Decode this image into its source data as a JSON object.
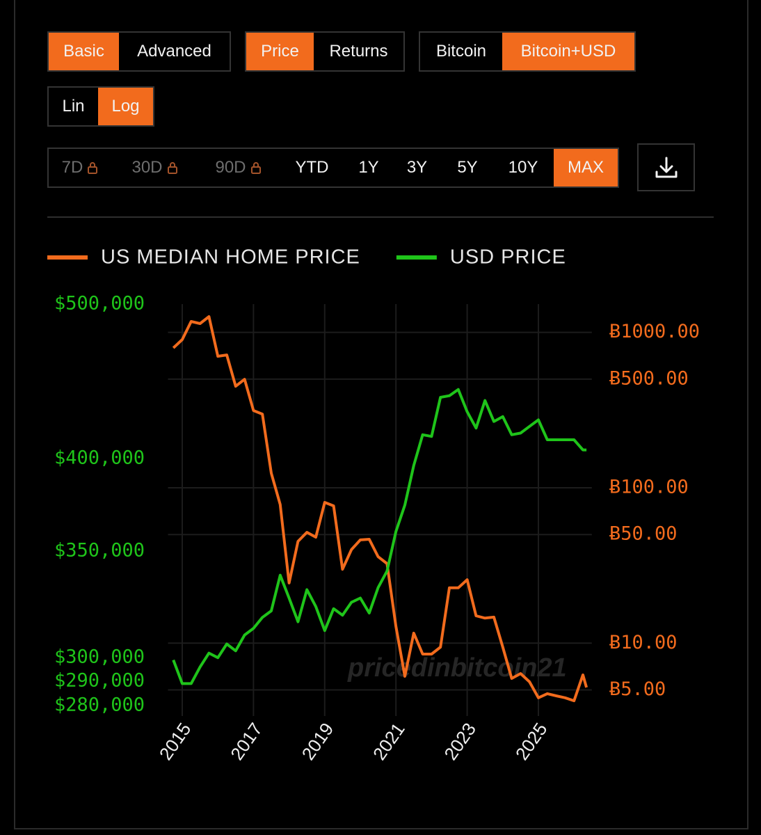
{
  "controls": {
    "mode": [
      "Basic",
      "Advanced"
    ],
    "view": [
      "Price",
      "Returns"
    ],
    "denomination": [
      "Bitcoin",
      "Bitcoin+USD"
    ],
    "scale": [
      "Lin",
      "Log"
    ],
    "ranges": [
      "7D",
      "30D",
      "90D",
      "YTD",
      "1Y",
      "3Y",
      "5Y",
      "10Y",
      "MAX"
    ]
  },
  "chart_data": {
    "type": "line",
    "watermark": "pricedinbitcoin21",
    "x": [
      2014.75,
      2015,
      2015.25,
      2015.5,
      2015.75,
      2016,
      2016.25,
      2016.5,
      2016.75,
      2017,
      2017.25,
      2017.5,
      2017.75,
      2018,
      2018.25,
      2018.5,
      2018.75,
      2019,
      2019.25,
      2019.5,
      2019.75,
      2020,
      2020.25,
      2020.5,
      2020.75,
      2021,
      2021.25,
      2021.5,
      2021.75,
      2022,
      2022.25,
      2022.5,
      2022.75,
      2023,
      2023.25,
      2023.5,
      2023.75,
      2024,
      2024.25,
      2024.5,
      2024.75,
      2025,
      2025.25,
      2025.5,
      2025.75,
      2026,
      2026.25,
      2026.35
    ],
    "series": [
      {
        "name": "US MEDIAN HOME PRICE",
        "color": "#f26b1d",
        "axis": "y2",
        "values": [
          794,
          899,
          1175,
          1139,
          1263,
          702,
          716,
          450,
          499,
          314,
          298,
          124,
          78,
          24.4,
          45.2,
          51.7,
          48.1,
          80.5,
          76.5,
          29.9,
          40.0,
          46.2,
          46.6,
          36.0,
          32.5,
          12.8,
          6.12,
          11.6,
          8.51,
          8.51,
          9.43,
          22.7,
          22.7,
          25.6,
          15.0,
          14.5,
          14.7,
          9.43,
          5.93,
          6.37,
          5.64,
          4.45,
          4.73,
          4.58,
          4.45,
          4.26,
          6.25,
          5.19
        ]
      },
      {
        "name": "USD PRICE",
        "color": "#1fc41a",
        "axis": "y",
        "values": [
          299000,
          289000,
          289000,
          296000,
          302000,
          300000,
          306000,
          303000,
          310000,
          313000,
          318000,
          321000,
          338000,
          327000,
          316000,
          331000,
          323000,
          312000,
          322000,
          319000,
          325000,
          327000,
          320000,
          332000,
          340000,
          360000,
          374000,
          396000,
          414000,
          413000,
          437000,
          438000,
          442000,
          428000,
          418000,
          435000,
          422000,
          425000,
          414000,
          415000,
          419000,
          423000,
          411000,
          411000,
          411000,
          411000,
          405000,
          405000
        ]
      }
    ],
    "xlim": [
      2014.6,
      2026.5
    ],
    "xticks": [
      2015,
      2017,
      2019,
      2021,
      2023,
      2025
    ],
    "ylim": [
      278000,
      500000
    ],
    "log_y": true,
    "yticks": [
      {
        "value": 280000,
        "label": "$280,000"
      },
      {
        "value": 290000,
        "label": "$290,000"
      },
      {
        "value": 300000,
        "label": "$300,000"
      },
      {
        "value": 350000,
        "label": "$350,000"
      },
      {
        "value": 400000,
        "label": "$400,000"
      },
      {
        "value": 500000,
        "label": "$500,000"
      }
    ],
    "y2lim": [
      3.69,
      1521
    ],
    "log_y2": true,
    "y2ticks": [
      {
        "value": 5,
        "label": "Ƀ5.00"
      },
      {
        "value": 10,
        "label": "Ƀ10.00"
      },
      {
        "value": 50,
        "label": "Ƀ50.00"
      },
      {
        "value": 100,
        "label": "Ƀ100.00"
      },
      {
        "value": 500,
        "label": "Ƀ500.00"
      },
      {
        "value": 1000,
        "label": "Ƀ1000.00"
      }
    ],
    "grid": true
  }
}
